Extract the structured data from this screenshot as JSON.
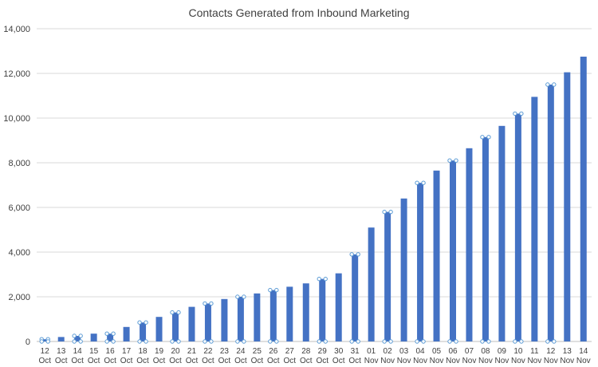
{
  "chart_data": {
    "type": "bar",
    "title": "Contacts Generated from Inbound Marketing",
    "xlabel": "",
    "ylabel": "",
    "ylim": [
      0,
      14000
    ],
    "yticks": [
      "0",
      "2,000",
      "4,000",
      "6,000",
      "8,000",
      "10,000",
      "12,000",
      "14,000"
    ],
    "grid": true,
    "legend": "none",
    "bar_color": "#4472c4",
    "categories": [
      [
        "12",
        "Oct"
      ],
      [
        "13",
        "Oct"
      ],
      [
        "14",
        "Oct"
      ],
      [
        "15",
        "Oct"
      ],
      [
        "16",
        "Oct"
      ],
      [
        "17",
        "Oct"
      ],
      [
        "18",
        "Oct"
      ],
      [
        "19",
        "Oct"
      ],
      [
        "20",
        "Oct"
      ],
      [
        "21",
        "Oct"
      ],
      [
        "22",
        "Oct"
      ],
      [
        "23",
        "Oct"
      ],
      [
        "24",
        "Oct"
      ],
      [
        "25",
        "Oct"
      ],
      [
        "26",
        "Oct"
      ],
      [
        "27",
        "Oct"
      ],
      [
        "28",
        "Oct"
      ],
      [
        "29",
        "Oct"
      ],
      [
        "30",
        "Oct"
      ],
      [
        "31",
        "Oct"
      ],
      [
        "01",
        "Nov"
      ],
      [
        "02",
        "Nov"
      ],
      [
        "03",
        "Nov"
      ],
      [
        "04",
        "Nov"
      ],
      [
        "05",
        "Nov"
      ],
      [
        "06",
        "Nov"
      ],
      [
        "07",
        "Nov"
      ],
      [
        "08",
        "Nov"
      ],
      [
        "09",
        "Nov"
      ],
      [
        "10",
        "Nov"
      ],
      [
        "11",
        "Nov"
      ],
      [
        "12",
        "Nov"
      ],
      [
        "13",
        "Nov"
      ],
      [
        "14",
        "Nov"
      ]
    ],
    "values": [
      100,
      200,
      250,
      350,
      350,
      650,
      850,
      1100,
      1300,
      1550,
      1700,
      1900,
      2000,
      2150,
      2300,
      2450,
      2600,
      2800,
      3050,
      3900,
      5100,
      5800,
      6400,
      7100,
      7650,
      8100,
      8650,
      9150,
      9650,
      10200,
      10950,
      11500,
      12050,
      12750
    ],
    "selected_indices": [
      0,
      2,
      4,
      6,
      8,
      10,
      12,
      14,
      17,
      19,
      21,
      23,
      25,
      27,
      29,
      31
    ]
  }
}
